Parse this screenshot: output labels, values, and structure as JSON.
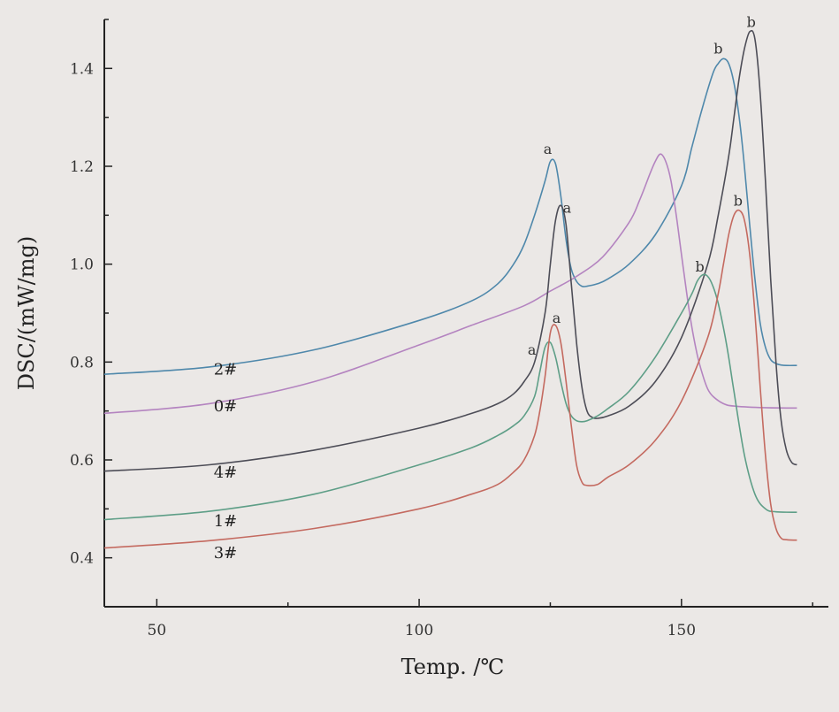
{
  "chart_data": {
    "type": "line",
    "title": "",
    "xlabel": "Temp. /℃",
    "ylabel": "DSC/(mW/mg)",
    "xlim": [
      40,
      178
    ],
    "ylim": [
      0.3,
      1.5
    ],
    "xticks": [
      50,
      100,
      150
    ],
    "xtick_labels": [
      "50",
      "100",
      "150"
    ],
    "yticks": [
      0.4,
      0.6,
      0.8,
      1.0,
      1.2,
      1.4
    ],
    "ytick_labels": [
      "0.4",
      "0.6",
      "0.8",
      "1.0",
      "1.2",
      "1.4"
    ],
    "grid": false,
    "series": [
      {
        "name": "2#",
        "color": "#4f88ab",
        "label_pos": [
          60,
          0.785
        ],
        "x": [
          40,
          60,
          80,
          100,
          110,
          115,
          118,
          120,
          122,
          124,
          125,
          126,
          127,
          128,
          129,
          130,
          131,
          132,
          134,
          136,
          140,
          145,
          150,
          152,
          154,
          156,
          157,
          158,
          159,
          160,
          161,
          162,
          163,
          164,
          165,
          166,
          167,
          168,
          169,
          170,
          172
        ],
        "y": [
          0.775,
          0.79,
          0.825,
          0.885,
          0.925,
          0.96,
          1.0,
          1.04,
          1.1,
          1.17,
          1.21,
          1.205,
          1.14,
          1.05,
          0.99,
          0.965,
          0.955,
          0.955,
          0.96,
          0.97,
          1.0,
          1.06,
          1.16,
          1.24,
          1.32,
          1.39,
          1.41,
          1.42,
          1.41,
          1.37,
          1.3,
          1.2,
          1.08,
          0.97,
          0.88,
          0.83,
          0.805,
          0.797,
          0.794,
          0.793,
          0.793
        ]
      },
      {
        "name": "0#",
        "color": "#b484c0",
        "label_pos": [
          60,
          0.71
        ],
        "x": [
          40,
          60,
          80,
          100,
          110,
          120,
          125,
          130,
          135,
          140,
          142,
          144,
          145,
          146,
          147,
          148,
          149,
          150,
          151,
          152,
          153,
          154,
          155,
          156,
          158,
          160,
          165,
          172
        ],
        "y": [
          0.695,
          0.715,
          0.76,
          0.835,
          0.875,
          0.915,
          0.945,
          0.975,
          1.015,
          1.085,
          1.13,
          1.185,
          1.21,
          1.225,
          1.21,
          1.17,
          1.1,
          1.02,
          0.94,
          0.87,
          0.815,
          0.775,
          0.745,
          0.73,
          0.715,
          0.71,
          0.707,
          0.706
        ]
      },
      {
        "name": "4#",
        "color": "#4d4d57",
        "label_pos": [
          60,
          0.575
        ],
        "x": [
          40,
          60,
          80,
          100,
          110,
          115,
          118,
          120,
          122,
          124,
          125,
          126,
          127,
          128,
          129,
          130,
          131,
          132,
          133,
          134,
          136,
          140,
          145,
          150,
          155,
          157,
          159,
          160,
          161,
          162,
          163,
          164,
          165,
          166,
          167,
          168,
          169,
          170,
          171,
          172
        ],
        "y": [
          0.577,
          0.59,
          0.62,
          0.665,
          0.695,
          0.715,
          0.735,
          0.76,
          0.8,
          0.9,
          1.0,
          1.09,
          1.12,
          1.08,
          0.96,
          0.84,
          0.75,
          0.7,
          0.687,
          0.685,
          0.69,
          0.71,
          0.76,
          0.85,
          1.0,
          1.1,
          1.22,
          1.3,
          1.38,
          1.44,
          1.475,
          1.46,
          1.35,
          1.17,
          0.97,
          0.8,
          0.68,
          0.62,
          0.595,
          0.59
        ]
      },
      {
        "name": "1#",
        "color": "#5e9e87",
        "label_pos": [
          60,
          0.475
        ],
        "x": [
          40,
          60,
          80,
          100,
          110,
          115,
          118,
          120,
          122,
          123,
          124,
          125,
          126,
          127,
          128,
          129,
          130,
          131,
          132,
          134,
          136,
          140,
          145,
          150,
          152,
          153,
          154,
          155,
          156,
          157,
          158,
          159,
          160,
          162,
          164,
          166,
          168,
          172
        ],
        "y": [
          0.478,
          0.495,
          0.53,
          0.59,
          0.625,
          0.65,
          0.67,
          0.69,
          0.73,
          0.78,
          0.83,
          0.84,
          0.81,
          0.76,
          0.715,
          0.69,
          0.68,
          0.678,
          0.68,
          0.69,
          0.705,
          0.74,
          0.81,
          0.9,
          0.94,
          0.965,
          0.978,
          0.975,
          0.955,
          0.92,
          0.87,
          0.81,
          0.74,
          0.61,
          0.53,
          0.5,
          0.494,
          0.493
        ]
      },
      {
        "name": "3#",
        "color": "#c46a60",
        "label_pos": [
          60,
          0.41
        ],
        "x": [
          40,
          60,
          80,
          100,
          110,
          115,
          118,
          120,
          122,
          123,
          124,
          125,
          126,
          127,
          128,
          129,
          130,
          131,
          132,
          134,
          136,
          140,
          145,
          150,
          155,
          157,
          158,
          159,
          160,
          161,
          162,
          163,
          164,
          165,
          166,
          167,
          168,
          169,
          170,
          172
        ],
        "y": [
          0.42,
          0.435,
          0.46,
          0.5,
          0.53,
          0.55,
          0.575,
          0.6,
          0.65,
          0.7,
          0.77,
          0.86,
          0.875,
          0.84,
          0.76,
          0.67,
          0.59,
          0.555,
          0.548,
          0.55,
          0.565,
          0.59,
          0.64,
          0.72,
          0.85,
          0.94,
          1.0,
          1.06,
          1.1,
          1.11,
          1.09,
          1.02,
          0.9,
          0.75,
          0.61,
          0.51,
          0.46,
          0.44,
          0.437,
          0.436
        ]
      }
    ],
    "annotations": [
      {
        "text": "a",
        "x": 124.5,
        "y": 1.225
      },
      {
        "text": "a",
        "x": 128.2,
        "y": 1.105
      },
      {
        "text": "a",
        "x": 126.2,
        "y": 0.88
      },
      {
        "text": "a",
        "x": 121.5,
        "y": 0.815
      },
      {
        "text": "b",
        "x": 157,
        "y": 1.43
      },
      {
        "text": "b",
        "x": 163.3,
        "y": 1.485
      },
      {
        "text": "b",
        "x": 153.5,
        "y": 0.985
      },
      {
        "text": "b",
        "x": 160.8,
        "y": 1.12
      }
    ]
  }
}
